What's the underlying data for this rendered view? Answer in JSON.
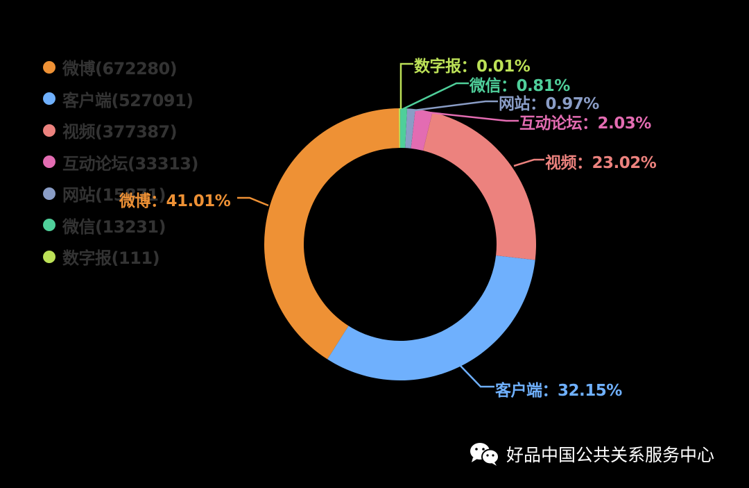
{
  "chart_data": {
    "type": "pie",
    "variant": "donut",
    "title": "",
    "categories": [
      "微博",
      "客户端",
      "视频",
      "互动论坛",
      "网站",
      "微信",
      "数字报"
    ],
    "values": [
      672280,
      527091,
      377387,
      33313,
      15871,
      13231,
      111
    ],
    "percentages": [
      41.01,
      32.15,
      23.02,
      2.03,
      0.97,
      0.81,
      0.01
    ],
    "colors": [
      "#EE9135",
      "#6FB0FD",
      "#EC827E",
      "#E36CB2",
      "#8A9DC6",
      "#4FCF9A",
      "#BCE157"
    ],
    "legend_position": "left",
    "inner_radius_ratio": 0.71,
    "start_angle": "top",
    "direction": "counterclockwise"
  },
  "legend": {
    "items": [
      {
        "label": "微博(672280)",
        "color": "#EE9135"
      },
      {
        "label": "客户端(527091)",
        "color": "#6FB0FD"
      },
      {
        "label": "视频(377387)",
        "color": "#EC827E"
      },
      {
        "label": "互动论坛(33313)",
        "color": "#E36CB2"
      },
      {
        "label": "网站(15871)",
        "color": "#8A9DC6"
      },
      {
        "label": "微信(13231)",
        "color": "#4FCF9A"
      },
      {
        "label": "数字报(111)",
        "color": "#BCE157"
      }
    ]
  },
  "labels": {
    "weibo": "微博：41.01%",
    "client": "客户端：32.15%",
    "video": "视频：23.02%",
    "forum": "互动论坛：2.03%",
    "website": "网站：0.97%",
    "wechat": "微信：0.81%",
    "digital": "数字报：0.01%"
  },
  "watermark": {
    "icon": "wechat-icon",
    "text": "好品中国公共关系服务中心"
  }
}
